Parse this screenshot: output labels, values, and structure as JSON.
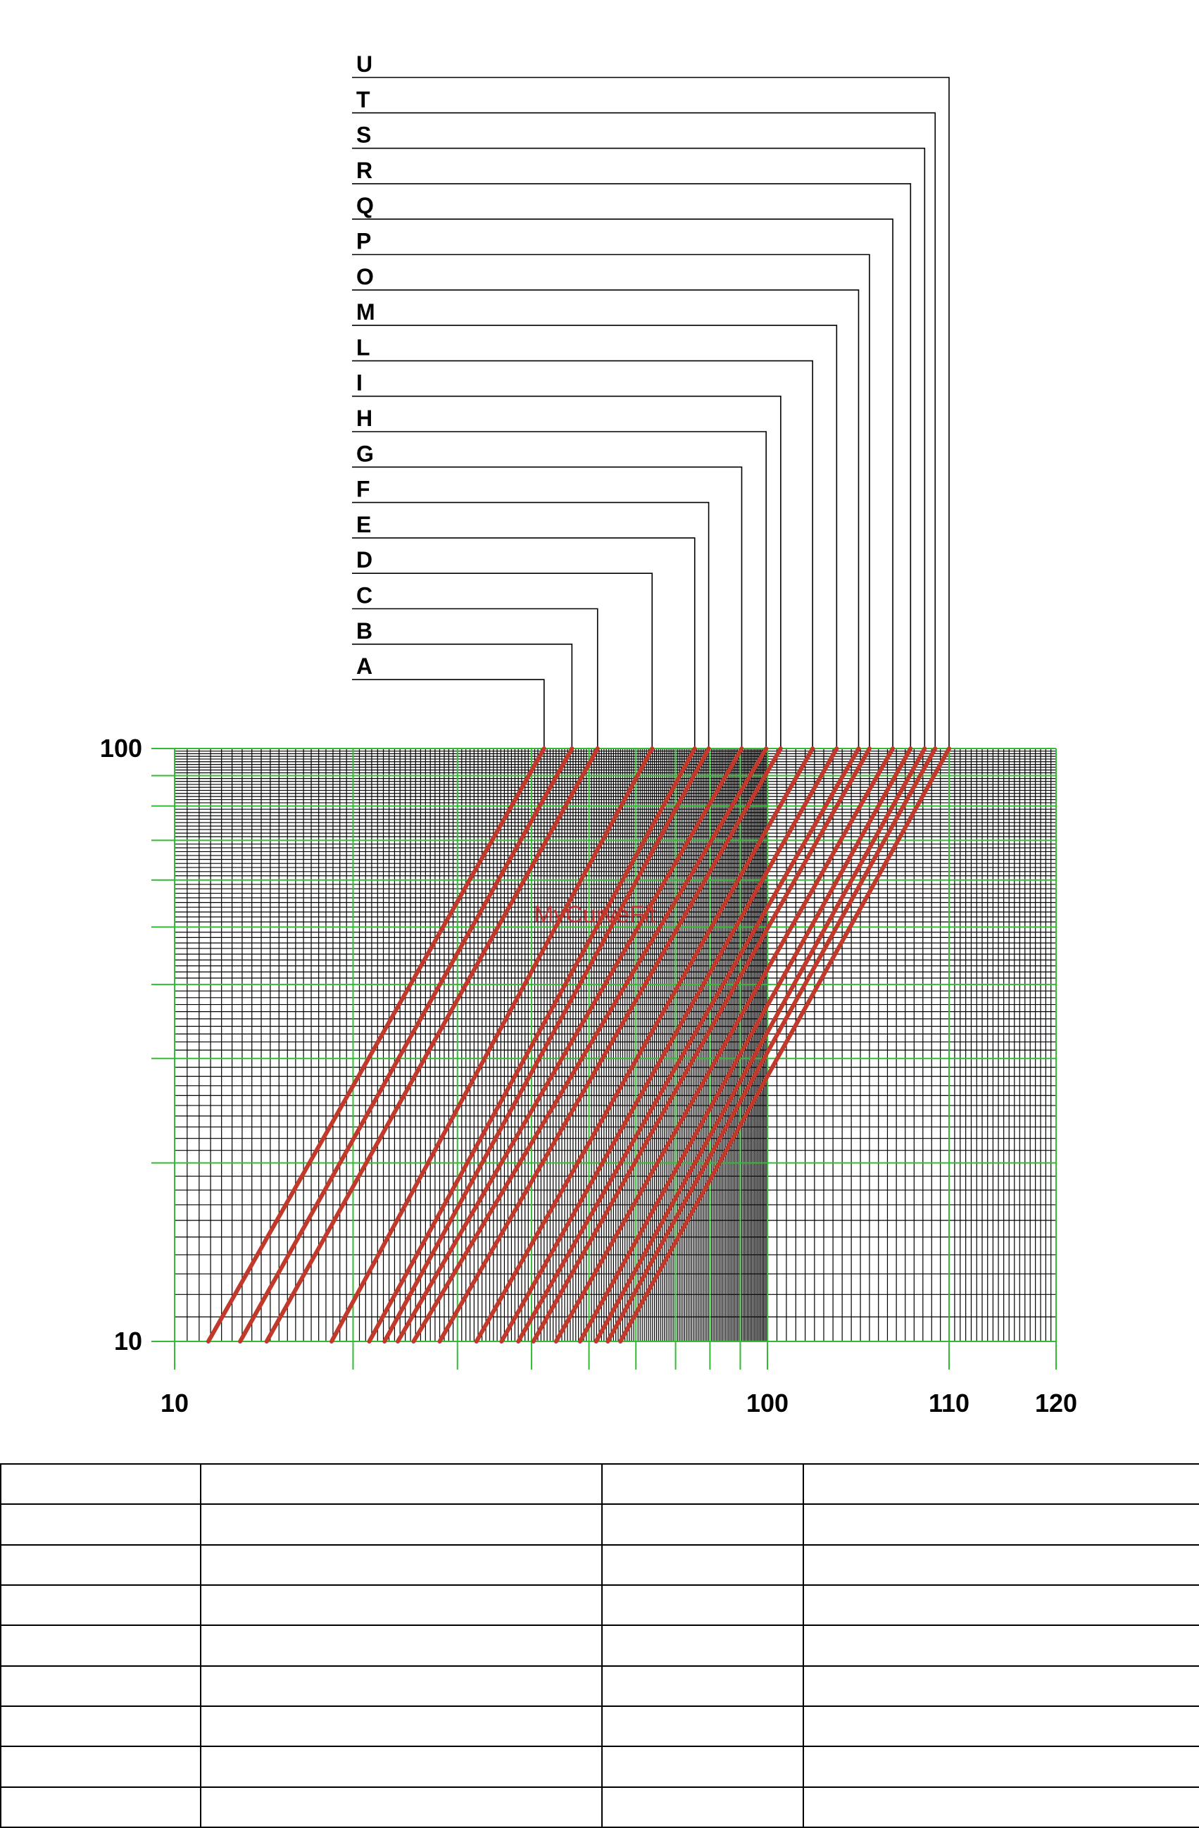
{
  "chart_data": {
    "type": "line",
    "title": "",
    "xlabel": "",
    "ylabel": "",
    "x_scale": "piecewise-log",
    "y_scale": "log",
    "x_ticks": [
      {
        "value": 10,
        "label": "10"
      },
      {
        "value": 100,
        "label": "100"
      },
      {
        "value": 110,
        "label": "110"
      },
      {
        "value": 120,
        "label": "120"
      }
    ],
    "y_ticks": [
      {
        "value": 10,
        "label": "10"
      },
      {
        "value": 100,
        "label": "100"
      }
    ],
    "xlim": [
      10,
      120
    ],
    "ylim": [
      10,
      100
    ],
    "grid": true,
    "watermark": "MyCurveFit",
    "series_color": "#c0392b",
    "series": [
      {
        "name": "A",
        "x": [
          11.4,
          42.0
        ],
        "y": [
          10,
          100
        ]
      },
      {
        "name": "B",
        "x": [
          12.9,
          46.8
        ],
        "y": [
          10,
          100
        ]
      },
      {
        "name": "C",
        "x": [
          14.3,
          51.7
        ],
        "y": [
          10,
          100
        ]
      },
      {
        "name": "D",
        "x": [
          18.4,
          63.9
        ],
        "y": [
          10,
          100
        ]
      },
      {
        "name": "E",
        "x": [
          21.3,
          75.4
        ],
        "y": [
          10,
          100
        ]
      },
      {
        "name": "F",
        "x": [
          22.6,
          79.6
        ],
        "y": [
          10,
          100
        ]
      },
      {
        "name": "G",
        "x": [
          23.8,
          90.5
        ],
        "y": [
          10,
          100
        ]
      },
      {
        "name": "H",
        "x": [
          25.3,
          99.5
        ],
        "y": [
          10,
          100
        ]
      },
      {
        "name": "I",
        "x": [
          28.0,
          100.7
        ],
        "y": [
          10,
          100
        ]
      },
      {
        "name": "L",
        "x": [
          32.3,
          102.4
        ],
        "y": [
          10,
          100
        ]
      },
      {
        "name": "M",
        "x": [
          35.6,
          103.7
        ],
        "y": [
          10,
          100
        ]
      },
      {
        "name": "O",
        "x": [
          38.0,
          104.9
        ],
        "y": [
          10,
          100
        ]
      },
      {
        "name": "P",
        "x": [
          40.3,
          105.5
        ],
        "y": [
          10,
          100
        ]
      },
      {
        "name": "Q",
        "x": [
          44.0,
          106.8
        ],
        "y": [
          10,
          100
        ]
      },
      {
        "name": "R",
        "x": [
          48.3,
          107.8
        ],
        "y": [
          10,
          100
        ]
      },
      {
        "name": "S",
        "x": [
          51.4,
          108.6
        ],
        "y": [
          10,
          100
        ]
      },
      {
        "name": "T",
        "x": [
          53.8,
          109.2
        ],
        "y": [
          10,
          100
        ]
      },
      {
        "name": "U",
        "x": [
          56.5,
          110.0
        ],
        "y": [
          10,
          100
        ]
      }
    ]
  },
  "table": {
    "rows": 9,
    "cols": 4
  }
}
